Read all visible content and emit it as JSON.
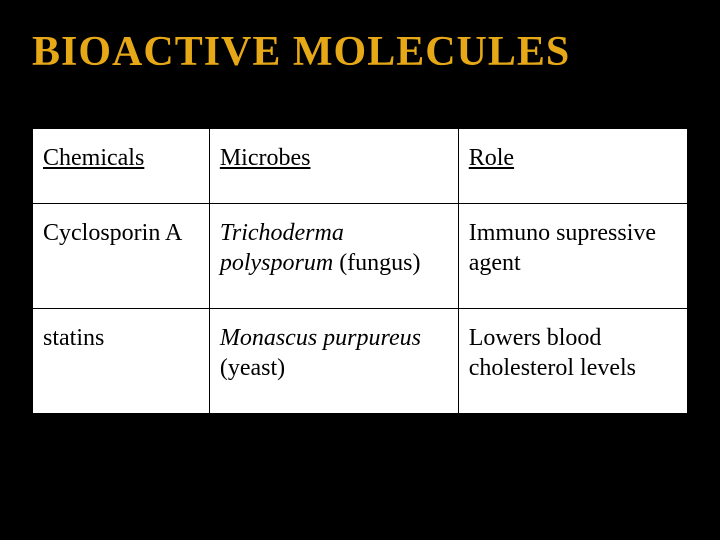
{
  "title": "BIOACTIVE MOLECULES",
  "table": {
    "columns": [
      "Chemicals",
      "Microbes",
      "Role"
    ],
    "column_widths_pct": [
      27,
      38,
      35
    ],
    "header_style": "underline",
    "border_color": "#000000",
    "background_color": "#ffffff",
    "font_size": 24,
    "rows": [
      {
        "chemicals": "Cyclosporin A",
        "microbe_italic": "Trichoderma polysporum",
        "microbe_plain": " (fungus)",
        "role": "Immuno supressive agent"
      },
      {
        "chemicals": "statins",
        "microbe_italic": "Monascus purpureus",
        "microbe_plain": " (yeast)",
        "role": "Lowers blood cholesterol levels"
      }
    ]
  },
  "colors": {
    "page_background": "#000000",
    "title_color": "#e6a817",
    "table_background": "#ffffff",
    "table_border": "#000000",
    "text_color": "#000000"
  },
  "typography": {
    "title_fontsize": 42,
    "title_weight": "bold",
    "cell_fontsize": 24,
    "font_family": "Georgia, Times New Roman, serif"
  }
}
